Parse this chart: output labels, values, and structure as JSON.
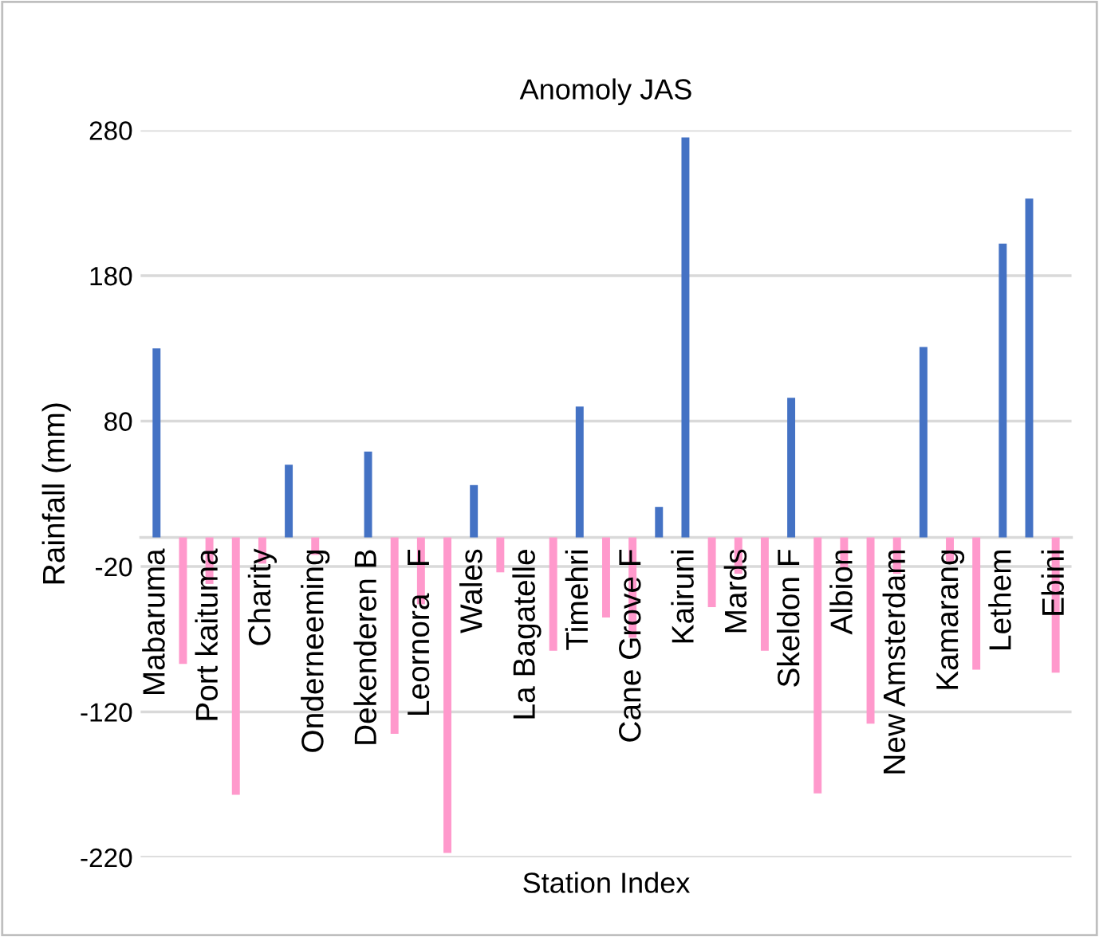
{
  "chart_data": {
    "type": "bar",
    "title": "Anomoly JAS",
    "xlabel": "Station Index",
    "ylabel": "Rainfall (mm)",
    "categories": [
      "Mabaruma",
      null,
      "Port kaituma",
      null,
      "Charity",
      null,
      "Onderneeming",
      null,
      "Dekenderen B",
      null,
      "Leornora   F",
      null,
      "Wales",
      null,
      "La Bagatelle",
      null,
      "Timehri",
      null,
      "Cane Grove F",
      null,
      "Kairuni",
      null,
      "Mards",
      null,
      "Skeldon F",
      null,
      "Albion",
      null,
      "New Amsterdam",
      null,
      "Kamarang",
      null,
      "Lethem",
      null,
      "Ebini"
    ],
    "values": [
      130,
      -87,
      -32,
      -177,
      -18,
      50,
      -12,
      0,
      59,
      -135,
      -46,
      -217,
      36,
      -24,
      0,
      -78,
      90,
      -55,
      -69,
      21,
      275,
      -48,
      -25,
      -78,
      96,
      -176,
      -22,
      -128,
      -25,
      131,
      -18,
      -91,
      202,
      233,
      -93
    ],
    "colors": [
      "#4472c4",
      "#ff99cc",
      "#ff99cc",
      "#ff99cc",
      "#ff99cc",
      "#4472c4",
      "#ff99cc",
      "#ff99cc",
      "#4472c4",
      "#ff99cc",
      "#ff99cc",
      "#ff99cc",
      "#4472c4",
      "#ff99cc",
      "#ff99cc",
      "#ff99cc",
      "#4472c4",
      "#ff99cc",
      "#ff99cc",
      "#4472c4",
      "#4472c4",
      "#ff99cc",
      "#ff99cc",
      "#ff99cc",
      "#4472c4",
      "#ff99cc",
      "#ff99cc",
      "#ff99cc",
      "#ff99cc",
      "#4472c4",
      "#ff99cc",
      "#ff99cc",
      "#4472c4",
      "#4472c4",
      "#ff99cc"
    ],
    "ylim": [
      -220,
      280
    ],
    "yticks": [
      -220,
      -120,
      -20,
      80,
      180,
      280
    ],
    "grid": "y",
    "legend": false
  }
}
